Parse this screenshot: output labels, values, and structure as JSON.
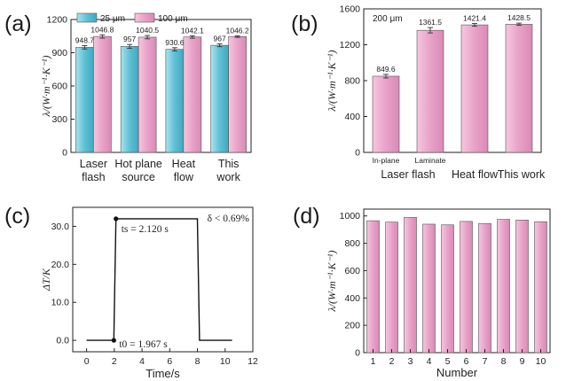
{
  "chart_data": [
    {
      "panel": "(a)",
      "type": "bar",
      "categories": [
        [
          "Laser",
          "flash"
        ],
        [
          "Hot plane",
          "source"
        ],
        [
          "Heat",
          "flow"
        ],
        [
          "This",
          "work"
        ]
      ],
      "series": [
        {
          "name": "25 μm",
          "color": "#6cc5d6",
          "values": [
            948.7,
            957,
            930.6,
            967
          ],
          "value_labels": [
            "948.7",
            "957",
            "930.6",
            "967"
          ],
          "errors": [
            30,
            35,
            30,
            25
          ]
        },
        {
          "name": "100 μm",
          "color": "#e6a1c7",
          "values": [
            1046.8,
            1040.5,
            1042.1,
            1046.2
          ],
          "value_labels": [
            "1046.8",
            "1040.5",
            "1042.1",
            "1046.2"
          ],
          "errors": [
            30,
            30,
            22,
            15
          ]
        }
      ],
      "ylabel": "λ/(W·m⁻¹·K⁻¹)",
      "ylim": [
        0,
        1200
      ],
      "yticks": [
        0,
        300,
        600,
        900,
        1200
      ]
    },
    {
      "panel": "(b)",
      "type": "bar",
      "annotation": "200 μm",
      "bars": [
        {
          "label": "849.6",
          "value": 849.6,
          "sublabel": "In-plane",
          "error": 40
        },
        {
          "label": "1361.5",
          "value": 1361.5,
          "sublabel": "Laminate",
          "error": 60
        },
        {
          "label": "1421.4",
          "value": 1421.4,
          "sublabel": "",
          "error": 30
        },
        {
          "label": "1428.5",
          "value": 1428.5,
          "sublabel": "",
          "error": 25
        }
      ],
      "group_labels": [
        "Laser flash",
        "Heat flow",
        "This work"
      ],
      "color": "#e6a1c7",
      "ylabel": "λ/(W·m⁻¹·K⁻¹)",
      "ylim": [
        0,
        1600
      ],
      "yticks": [
        0,
        400,
        800,
        1200,
        1600
      ]
    },
    {
      "panel": "(c)",
      "type": "line",
      "x": [
        0,
        1.967,
        2.12,
        8.0,
        8.15,
        10.5
      ],
      "y": [
        0,
        0,
        32,
        32,
        0,
        0
      ],
      "xlabel": "Time/s",
      "ylabel": "ΔT/K",
      "xlim": [
        -1,
        12
      ],
      "ylim": [
        -3,
        35
      ],
      "xticks": [
        0,
        2,
        4,
        6,
        8,
        10,
        12
      ],
      "yticks": [
        "0.0",
        "10.0",
        "20.0",
        "30.0"
      ],
      "annotations": {
        "ts": "ts = 2.120 s",
        "t0": "t0 = 1.967 s",
        "delta": "δ < 0.69%"
      }
    },
    {
      "panel": "(d)",
      "type": "bar",
      "categories": [
        "1",
        "2",
        "3",
        "4",
        "5",
        "6",
        "7",
        "8",
        "9",
        "10"
      ],
      "values": [
        965,
        955,
        990,
        940,
        935,
        960,
        945,
        975,
        970,
        958
      ],
      "color": "#e6a1c7",
      "xlabel": "Number",
      "ylabel": "λ/(W·m⁻¹·K⁻¹)",
      "ylim": [
        0,
        1050
      ],
      "yticks": [
        0,
        200,
        400,
        600,
        800,
        1000
      ]
    }
  ]
}
